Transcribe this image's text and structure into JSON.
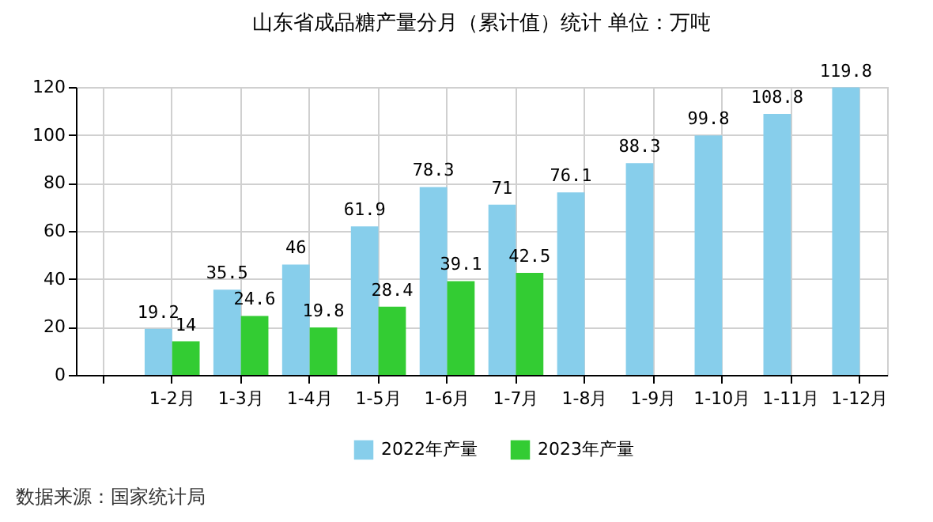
{
  "chart_data": {
    "type": "bar",
    "title": "山东省成品糖产量分月（累计值）统计 单位：万吨",
    "categories": [
      null,
      "1-2月",
      "1-3月",
      "1-4月",
      "1-5月",
      "1-6月",
      "1-7月",
      "1-8月",
      "1-9月",
      "1-10月",
      "1-11月",
      "1-12月"
    ],
    "series": [
      {
        "name": "2022年产量",
        "color": "#87ceeb",
        "values": [
          null,
          19.2,
          35.5,
          46,
          61.9,
          78.3,
          71,
          76.1,
          88.3,
          99.8,
          108.8,
          119.8
        ]
      },
      {
        "name": "2023年产量",
        "color": "#33cc33",
        "values": [
          null,
          14,
          24.6,
          19.8,
          28.4,
          39.1,
          42.5,
          null,
          null,
          null,
          null,
          null
        ]
      }
    ],
    "ylim": [
      0,
      120
    ],
    "yticks": [
      0,
      20,
      40,
      60,
      80,
      100,
      120
    ],
    "grid": true,
    "legend": "bottom",
    "data_labels": true,
    "annotations": [
      "数据来源：国家统计局"
    ]
  }
}
